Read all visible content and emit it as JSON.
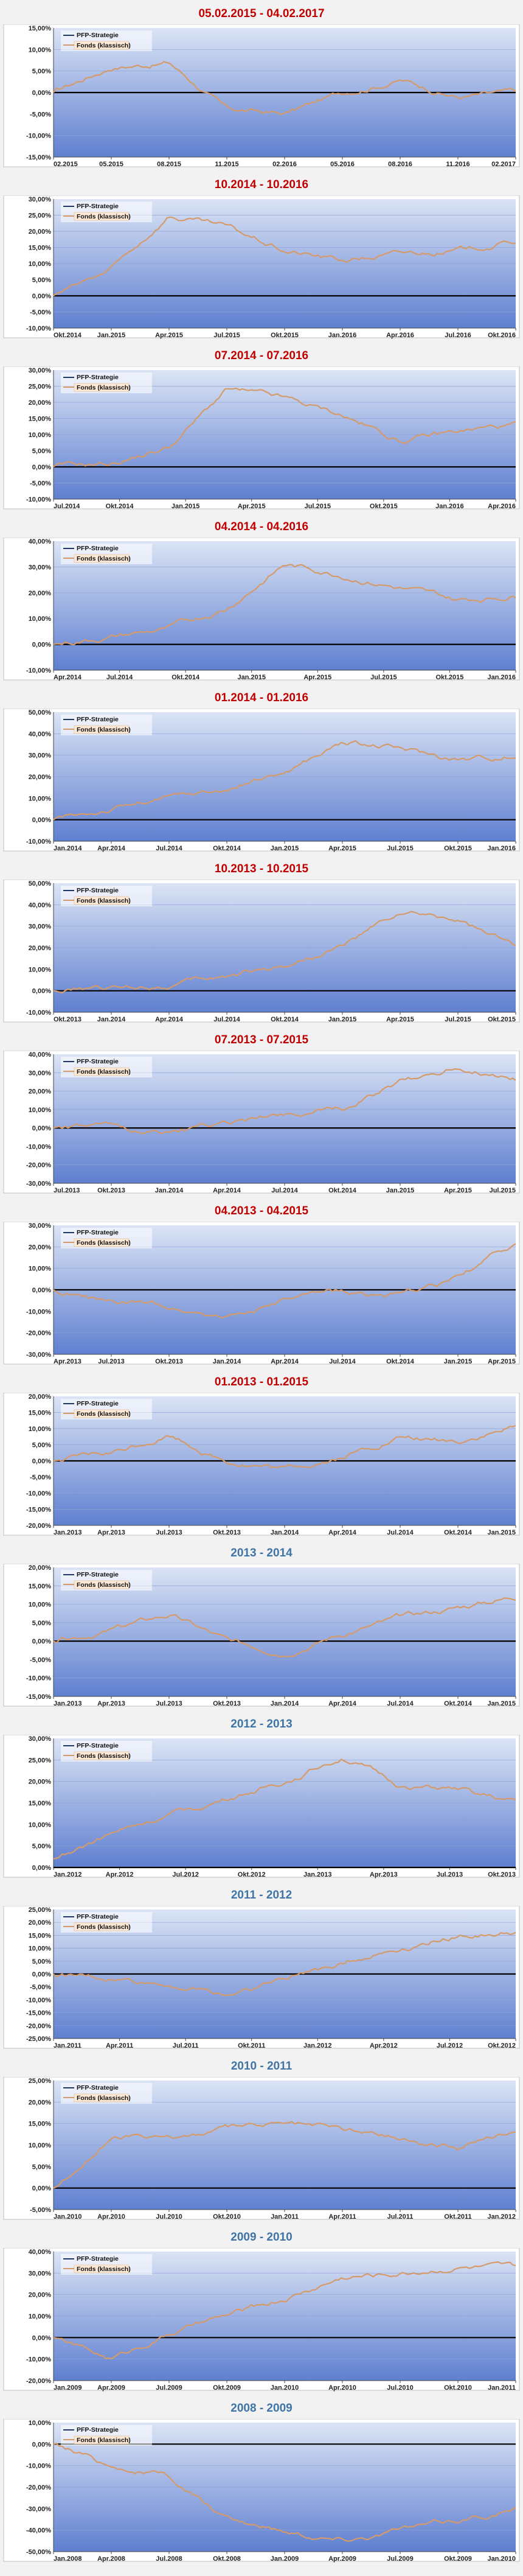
{
  "legend": {
    "series1": "PFP-Strategie",
    "series2": "Fonds (klassisch)"
  },
  "colors": {
    "title_red": "#c00000",
    "title_blue": "#3f74a6",
    "series1": "#1f3864",
    "series2": "#d59a6a",
    "zero_line": "#000000",
    "plot_top": "#dbe4f5",
    "plot_bottom": "#5f7fd0"
  },
  "chart_data": [
    {
      "title": "05.02.2015 - 04.02.2017",
      "type": "line",
      "title_color": "red",
      "yticks": [
        "15,00%",
        "10,00%",
        "5,00%",
        "0,00%",
        "-5,00%",
        "-10,00%",
        "-15,00%"
      ],
      "ylim": [
        -15,
        15
      ],
      "xticks": [
        "02.2015",
        "05.2015",
        "08.2015",
        "11.2015",
        "02.2016",
        "05.2016",
        "08.2016",
        "11.2016",
        "02.2017"
      ],
      "series": [
        {
          "name": "PFP-Strategie",
          "values": [
            0,
            0,
            0,
            0,
            0,
            0,
            0,
            0,
            0
          ]
        },
        {
          "name": "Fonds (klassisch)",
          "values": [
            0,
            6,
            7,
            -4,
            -5,
            0,
            3,
            -1,
            0
          ]
        }
      ]
    },
    {
      "title": "10.2014 - 10.2016",
      "type": "line",
      "title_color": "red",
      "yticks": [
        "30,00%",
        "25,00%",
        "20,00%",
        "15,00%",
        "10,00%",
        "5,00%",
        "0,00%",
        "-5,00%",
        "-10,00%"
      ],
      "ylim": [
        -10,
        30
      ],
      "xticks": [
        "Okt.2014",
        "Jan.2015",
        "Apr.2015",
        "Jul.2015",
        "Okt.2015",
        "Jan.2016",
        "Apr.2016",
        "Jul.2016",
        "Okt.2016"
      ],
      "series": [
        {
          "name": "PFP-Strategie",
          "values": [
            0,
            0,
            0,
            0,
            0,
            0,
            0,
            0,
            0
          ]
        },
        {
          "name": "Fonds (klassisch)",
          "values": [
            0,
            8,
            25,
            21,
            14,
            11,
            13,
            14,
            17
          ]
        }
      ]
    },
    {
      "title": "07.2014 - 07.2016",
      "type": "line",
      "title_color": "red",
      "yticks": [
        "30,00%",
        "25,00%",
        "20,00%",
        "15,00%",
        "10,00%",
        "5,00%",
        "0,00%",
        "-5,00%",
        "-10,00%"
      ],
      "ylim": [
        -10,
        30
      ],
      "xticks": [
        "Jul.2014",
        "Okt.2014",
        "Jan.2015",
        "Apr.2015",
        "Jul.2015",
        "Okt.2015",
        "Jan.2016",
        "Apr.2016"
      ],
      "series": [
        {
          "name": "PFP-Strategie",
          "values": [
            0,
            0,
            0,
            0,
            0,
            0,
            0,
            0,
            0
          ]
        },
        {
          "name": "Fonds (klassisch)",
          "values": [
            0,
            1,
            6,
            24,
            21,
            16,
            8,
            11,
            13
          ]
        }
      ]
    },
    {
      "title": "04.2014 - 04.2016",
      "type": "line",
      "title_color": "red",
      "yticks": [
        "40,00%",
        "30,00%",
        "20,00%",
        "10,00%",
        "0,00%",
        "-10,00%"
      ],
      "ylim": [
        -10,
        40
      ],
      "xticks": [
        "Apr.2014",
        "Jul.2014",
        "Okt.2014",
        "Jan.2015",
        "Apr.2015",
        "Jul.2015",
        "Okt.2015",
        "Jan.2016"
      ],
      "series": [
        {
          "name": "PFP-Strategie",
          "values": [
            0,
            0,
            0,
            0,
            0,
            0,
            0,
            0,
            0
          ]
        },
        {
          "name": "Fonds (klassisch)",
          "values": [
            0,
            3,
            6,
            14,
            31,
            27,
            22,
            17,
            19
          ]
        }
      ]
    },
    {
      "title": "01.2014 - 01.2016",
      "type": "line",
      "title_color": "red",
      "yticks": [
        "50,00%",
        "40,00%",
        "30,00%",
        "20,00%",
        "10,00%",
        "0,00%",
        "-10,00%"
      ],
      "ylim": [
        -10,
        50
      ],
      "xticks": [
        "Jan.2014",
        "Apr.2014",
        "Jul.2014",
        "Okt.2014",
        "Jan.2015",
        "Apr.2015",
        "Jul.2015",
        "Okt.2015",
        "Jan.2016"
      ],
      "series": [
        {
          "name": "PFP-Strategie",
          "values": [
            0,
            0,
            0,
            0,
            0,
            0,
            0,
            0,
            0
          ]
        },
        {
          "name": "Fonds (klassisch)",
          "values": [
            0,
            5,
            10,
            14,
            22,
            36,
            33,
            28,
            30
          ]
        }
      ]
    },
    {
      "title": "10.2013 - 10.2015",
      "type": "line",
      "title_color": "red",
      "yticks": [
        "50,00%",
        "40,00%",
        "30,00%",
        "20,00%",
        "10,00%",
        "0,00%",
        "-10,00%"
      ],
      "ylim": [
        -10,
        50
      ],
      "xticks": [
        "Okt.2013",
        "Jan.2014",
        "Apr.2014",
        "Jul.2014",
        "Okt.2014",
        "Jan.2015",
        "Apr.2015",
        "Jul.2015",
        "Okt.2015"
      ],
      "series": [
        {
          "name": "PFP-Strategie",
          "values": [
            0,
            0,
            0,
            0,
            0,
            0,
            0,
            0,
            0
          ]
        },
        {
          "name": "Fonds (klassisch)",
          "values": [
            0,
            1,
            3,
            7,
            12,
            21,
            36,
            33,
            20
          ]
        }
      ]
    },
    {
      "title": "07.2013 - 07.2015",
      "type": "line",
      "title_color": "red",
      "yticks": [
        "40,00%",
        "30,00%",
        "20,00%",
        "10,00%",
        "0,00%",
        "-10,00%",
        "-20,00%",
        "-30,00%"
      ],
      "ylim": [
        -30,
        40
      ],
      "xticks": [
        "Jul.2013",
        "Okt.2013",
        "Jan.2014",
        "Apr.2014",
        "Jul.2014",
        "Okt.2014",
        "Jan.2015",
        "Apr.2015",
        "Jul.2015"
      ],
      "series": [
        {
          "name": "PFP-Strategie",
          "values": [
            0,
            0,
            0,
            0,
            0,
            0,
            0,
            0,
            0
          ]
        },
        {
          "name": "Fonds (klassisch)",
          "values": [
            0,
            0,
            -2,
            2,
            8,
            10,
            25,
            33,
            27
          ]
        }
      ]
    },
    {
      "title": "04.2013 - 04.2015",
      "type": "line",
      "title_color": "red",
      "yticks": [
        "30,00%",
        "20,00%",
        "10,00%",
        "0,00%",
        "-10,00%",
        "-20,00%",
        "-30,00%"
      ],
      "ylim": [
        -30,
        30
      ],
      "xticks": [
        "Apr.2013",
        "Jul.2013",
        "Okt.2013",
        "Jan.2014",
        "Apr.2014",
        "Jul.2014",
        "Okt.2014",
        "Jan.2015",
        "Apr.2015"
      ],
      "series": [
        {
          "name": "PFP-Strategie",
          "values": [
            0,
            0,
            0,
            0,
            0,
            0,
            0,
            0,
            0
          ]
        },
        {
          "name": "Fonds (klassisch)",
          "values": [
            0,
            -6,
            -8,
            -12,
            -5,
            -1,
            -3,
            5,
            22
          ]
        }
      ]
    },
    {
      "title": "01.2013 - 01.2015",
      "type": "line",
      "title_color": "red",
      "yticks": [
        "20,00%",
        "15,00%",
        "10,00%",
        "5,00%",
        "0,00%",
        "-5,00%",
        "-10,00%",
        "-15,00%",
        "-20,00%"
      ],
      "ylim": [
        -20,
        20
      ],
      "xticks": [
        "Jan.2013",
        "Apr.2013",
        "Jul.2013",
        "Okt.2013",
        "Jan.2014",
        "Apr.2014",
        "Jul.2014",
        "Okt.2014",
        "Jan.2015"
      ],
      "series": [
        {
          "name": "PFP-Strategie",
          "values": [
            0,
            0,
            0,
            0,
            0,
            0,
            0,
            0,
            0
          ]
        },
        {
          "name": "Fonds (klassisch)",
          "values": [
            0,
            2,
            8,
            0,
            -3,
            1,
            7,
            6,
            10
          ]
        }
      ]
    },
    {
      "title": "2013 - 2014",
      "type": "line",
      "title_color": "blue",
      "yticks": [
        "20,00%",
        "15,00%",
        "10,00%",
        "5,00%",
        "0,00%",
        "-5,00%",
        "-10,00%",
        "-15,00%"
      ],
      "ylim": [
        -15,
        20
      ],
      "xticks": [
        "Jan.2013",
        "Apr.2013",
        "Jul.2013",
        "Okt.2013",
        "Jan.2014",
        "Apr.2014",
        "Jul.2014",
        "Okt.2014",
        "Jan.2015"
      ],
      "series": [
        {
          "name": "PFP-Strategie",
          "values": [
            0,
            0,
            0,
            0,
            0,
            0,
            0,
            0,
            0
          ]
        },
        {
          "name": "Fonds (klassisch)",
          "values": [
            0,
            3,
            7,
            0,
            -3,
            2,
            6,
            9,
            12
          ]
        }
      ]
    },
    {
      "title": "2012 - 2013",
      "type": "line",
      "title_color": "blue",
      "yticks": [
        "30,00%",
        "25,00%",
        "20,00%",
        "15,00%",
        "10,00%",
        "5,00%",
        "0,00%"
      ],
      "ylim": [
        0,
        30
      ],
      "xticks": [
        "Jan.2012",
        "Apr.2012",
        "Jul.2012",
        "Okt.2012",
        "Jan.2013",
        "Apr.2013",
        "Jul.2013",
        "Okt.2013"
      ],
      "series": [
        {
          "name": "PFP-Strategie",
          "values": [
            0,
            0,
            0,
            0,
            0,
            0,
            0,
            0,
            0
          ]
        },
        {
          "name": "Fonds (klassisch)",
          "values": [
            2,
            8,
            12,
            16,
            20,
            26,
            19,
            18,
            15
          ]
        }
      ]
    },
    {
      "title": "2011 - 2012",
      "type": "line",
      "title_color": "blue",
      "yticks": [
        "25,00%",
        "20,00%",
        "15,00%",
        "10,00%",
        "5,00%",
        "0,00%",
        "-5,00%",
        "-10,00%",
        "-15,00%",
        "-20,00%",
        "-25,00%"
      ],
      "ylim": [
        -25,
        25
      ],
      "xticks": [
        "Jan.2011",
        "Apr.2011",
        "Jul.2011",
        "Okt.2011",
        "Jan.2012",
        "Apr.2012",
        "Jul.2012",
        "Okt.2012"
      ],
      "series": [
        {
          "name": "PFP-Strategie",
          "values": [
            0,
            0,
            0,
            0,
            0,
            0,
            0,
            0,
            0
          ]
        },
        {
          "name": "Fonds (klassisch)",
          "values": [
            0,
            -2,
            -4,
            -8,
            -2,
            5,
            10,
            15,
            16
          ]
        }
      ]
    },
    {
      "title": "2010 - 2011",
      "type": "line",
      "title_color": "blue",
      "yticks": [
        "25,00%",
        "20,00%",
        "15,00%",
        "10,00%",
        "5,00%",
        "0,00%",
        "-5,00%"
      ],
      "ylim": [
        -5,
        25
      ],
      "xticks": [
        "Jan.2010",
        "Apr.2010",
        "Jul.2010",
        "Okt.2010",
        "Jan.2011",
        "Apr.2011",
        "Jul.2011",
        "Okt.2011",
        "Jan.2012"
      ],
      "series": [
        {
          "name": "PFP-Strategie",
          "values": [
            0,
            0,
            0,
            0,
            0,
            0,
            0,
            0,
            0
          ]
        },
        {
          "name": "Fonds (klassisch)",
          "values": [
            0,
            12,
            11,
            14,
            15,
            14,
            12,
            9,
            14
          ]
        }
      ]
    },
    {
      "title": "2009 - 2010",
      "type": "line",
      "title_color": "blue",
      "yticks": [
        "40,00%",
        "30,00%",
        "20,00%",
        "10,00%",
        "0,00%",
        "-10,00%",
        "-20,00%"
      ],
      "ylim": [
        -20,
        40
      ],
      "xticks": [
        "Jan.2009",
        "Apr.2009",
        "Jul.2009",
        "Okt.2009",
        "Jan.2010",
        "Apr.2010",
        "Jul.2010",
        "Okt.2010",
        "Jan.2011"
      ],
      "series": [
        {
          "name": "PFP-Strategie",
          "values": [
            0,
            0,
            0,
            0,
            0,
            0,
            0,
            0,
            0
          ]
        },
        {
          "name": "Fonds (klassisch)",
          "values": [
            0,
            -10,
            2,
            10,
            18,
            28,
            30,
            33,
            32
          ]
        }
      ]
    },
    {
      "title": "2008 - 2009",
      "type": "line",
      "title_color": "blue",
      "yticks": [
        "10,00%",
        "0,00%",
        "-10,00%",
        "-20,00%",
        "-30,00%",
        "-40,00%",
        "-50,00%"
      ],
      "ylim": [
        -50,
        10
      ],
      "xticks": [
        "Jan.2008",
        "Apr.2008",
        "Jul.2008",
        "Okt.2008",
        "Jan.2009",
        "Apr.2009",
        "Jul.2009",
        "Okt.2009",
        "Jan.2010"
      ],
      "series": [
        {
          "name": "PFP-Strategie",
          "values": [
            0,
            0,
            0,
            0,
            0,
            0,
            0,
            0,
            0
          ]
        },
        {
          "name": "Fonds (klassisch)",
          "values": [
            0,
            -10,
            -15,
            -35,
            -40,
            -44,
            -40,
            -35,
            -30
          ]
        }
      ]
    }
  ]
}
